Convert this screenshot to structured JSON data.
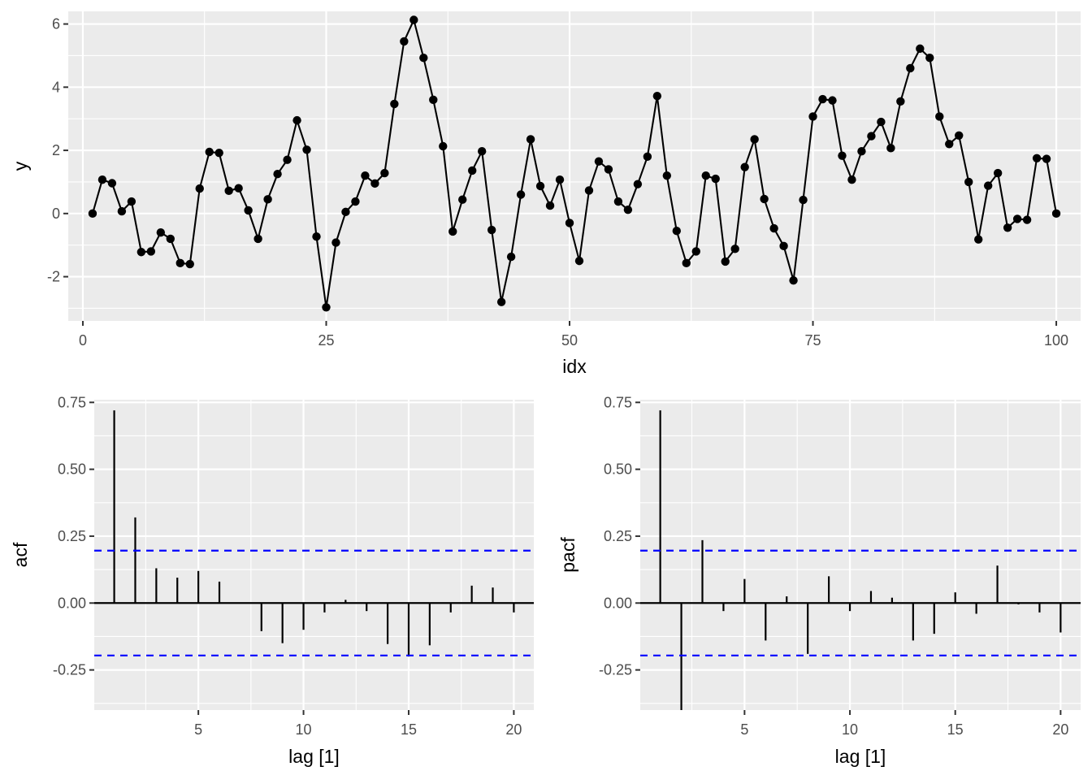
{
  "chart_data": [
    {
      "type": "line",
      "xlabel": "idx",
      "ylabel": "y",
      "xlim": [
        -1.5,
        102.5
      ],
      "ylim": [
        -3.4,
        6.4
      ],
      "xticks": [
        0,
        25,
        50,
        75,
        100
      ],
      "xtick_labels": [
        "0",
        "25",
        "50",
        "75",
        "100"
      ],
      "yticks": [
        -2,
        0,
        2,
        4,
        6
      ],
      "ytick_labels": [
        "-2",
        "0",
        "2",
        "4",
        "6"
      ],
      "grid": true,
      "markers": true,
      "x": [
        1,
        2,
        3,
        4,
        5,
        6,
        7,
        8,
        9,
        10,
        11,
        12,
        13,
        14,
        15,
        16,
        17,
        18,
        19,
        20,
        21,
        22,
        23,
        24,
        25,
        26,
        27,
        28,
        29,
        30,
        31,
        32,
        33,
        34,
        35,
        36,
        37,
        38,
        39,
        40,
        41,
        42,
        43,
        44,
        45,
        46,
        47,
        48,
        49,
        50,
        51,
        52,
        53,
        54,
        55,
        56,
        57,
        58,
        59,
        60,
        61,
        62,
        63,
        64,
        65,
        66,
        67,
        68,
        69,
        70,
        71,
        72,
        73,
        74,
        75,
        76,
        77,
        78,
        79,
        80,
        81,
        82,
        83,
        84,
        85,
        86,
        87,
        88,
        89,
        90,
        91,
        92,
        93,
        94,
        95,
        96,
        97,
        98,
        99,
        100
      ],
      "y": [
        0.0,
        1.07,
        0.96,
        0.07,
        0.38,
        -1.22,
        -1.2,
        -0.6,
        -0.8,
        -1.57,
        -1.6,
        0.79,
        1.95,
        1.92,
        0.72,
        0.8,
        0.1,
        -0.8,
        0.45,
        1.25,
        1.7,
        2.95,
        2.02,
        -0.73,
        -2.97,
        -0.92,
        0.05,
        0.38,
        1.2,
        0.95,
        1.28,
        3.47,
        5.45,
        6.13,
        4.93,
        3.6,
        2.13,
        -0.57,
        0.44,
        1.36,
        1.97,
        -0.52,
        -2.8,
        -1.37,
        0.6,
        2.35,
        0.87,
        0.25,
        1.07,
        -0.3,
        -1.5,
        0.73,
        1.65,
        1.4,
        0.38,
        0.12,
        0.93,
        1.8,
        3.72,
        1.2,
        -0.55,
        -1.57,
        -1.2,
        1.2,
        1.1,
        -1.52,
        -1.12,
        1.47,
        2.35,
        0.46,
        -0.47,
        -1.03,
        -2.12,
        0.43,
        3.07,
        3.62,
        3.58,
        1.83,
        1.07,
        1.97,
        2.45,
        2.9,
        2.07,
        3.55,
        4.6,
        5.22,
        4.93,
        3.07,
        2.2,
        2.47,
        1.0,
        -0.82,
        0.88,
        1.28,
        -0.45,
        -0.17,
        -0.2,
        1.75,
        1.73,
        0.0
      ]
    },
    {
      "type": "bar",
      "xlabel": "lag [1]",
      "ylabel": "acf",
      "xlim": [
        0.05,
        20.95
      ],
      "ylim": [
        -0.4,
        0.76
      ],
      "xticks": [
        5,
        10,
        15,
        20
      ],
      "xtick_labels": [
        "5",
        "10",
        "15",
        "20"
      ],
      "yticks": [
        -0.25,
        0,
        0.25,
        0.5,
        0.75
      ],
      "ytick_labels": [
        "-0.25",
        "0.00",
        "0.25",
        "0.50",
        "0.75"
      ],
      "grid": true,
      "confidence_bound": 0.196,
      "confidence_color": "#0000ff",
      "lags": [
        1,
        2,
        3,
        4,
        5,
        6,
        7,
        8,
        9,
        10,
        11,
        12,
        13,
        14,
        15,
        16,
        17,
        18,
        19,
        20
      ],
      "values": [
        0.72,
        0.32,
        0.13,
        0.095,
        0.12,
        0.08,
        0.0,
        -0.105,
        -0.15,
        -0.1,
        -0.035,
        0.012,
        -0.03,
        -0.153,
        -0.2,
        -0.158,
        -0.035,
        0.065,
        0.058,
        -0.035
      ]
    },
    {
      "type": "bar",
      "xlabel": "lag [1]",
      "ylabel": "pacf",
      "xlim": [
        0.05,
        20.95
      ],
      "ylim": [
        -0.4,
        0.76
      ],
      "xticks": [
        5,
        10,
        15,
        20
      ],
      "xtick_labels": [
        "5",
        "10",
        "15",
        "20"
      ],
      "yticks": [
        -0.25,
        0,
        0.25,
        0.5,
        0.75
      ],
      "ytick_labels": [
        "-0.25",
        "0.00",
        "0.25",
        "0.50",
        "0.75"
      ],
      "grid": true,
      "confidence_bound": 0.196,
      "confidence_color": "#0000ff",
      "lags": [
        1,
        2,
        3,
        4,
        5,
        6,
        7,
        8,
        9,
        10,
        11,
        12,
        13,
        14,
        15,
        16,
        17,
        18,
        19,
        20
      ],
      "values": [
        0.72,
        -0.4,
        0.235,
        -0.03,
        0.09,
        -0.14,
        0.025,
        -0.19,
        0.1,
        -0.03,
        0.045,
        0.02,
        -0.14,
        -0.115,
        0.04,
        -0.04,
        0.14,
        -0.005,
        -0.035,
        -0.11
      ]
    }
  ]
}
